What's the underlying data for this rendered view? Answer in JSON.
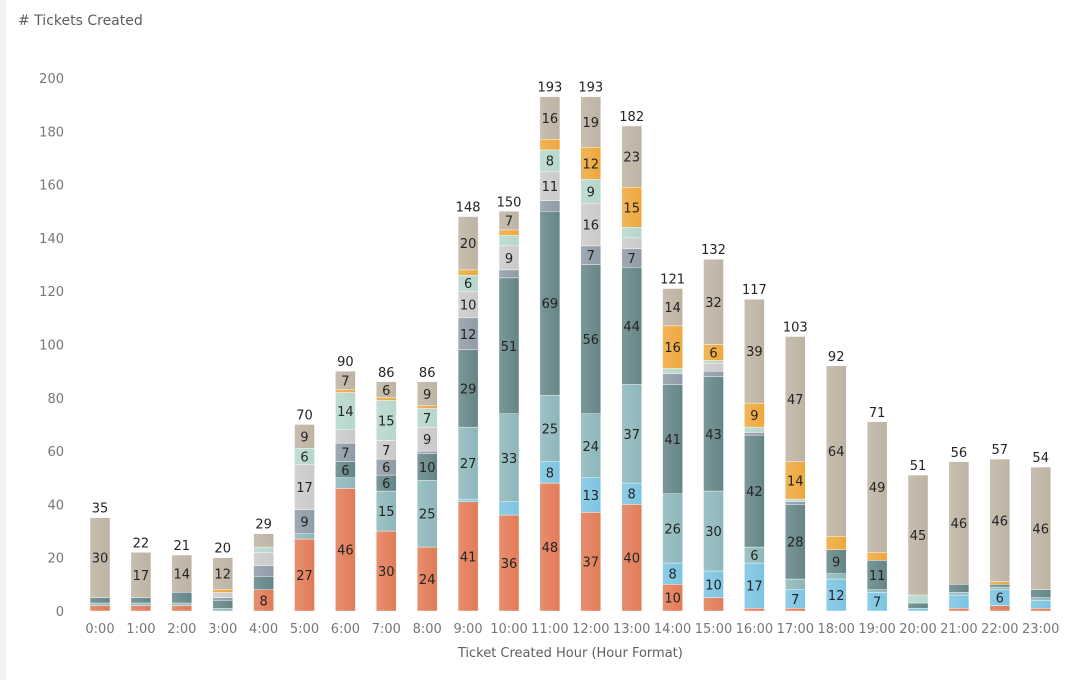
{
  "chart_data": {
    "type": "bar",
    "stacked": true,
    "title": "# Tickets Created",
    "xlabel": "Ticket Created Hour (Hour Format)",
    "ylabel": "",
    "ylim": [
      0,
      200
    ],
    "yticks": [
      0,
      20,
      40,
      60,
      80,
      100,
      120,
      140,
      160,
      180,
      200
    ],
    "grid": false,
    "legend": "none",
    "categories": [
      "0:00",
      "1:00",
      "2:00",
      "3:00",
      "4:00",
      "5:00",
      "6:00",
      "7:00",
      "8:00",
      "9:00",
      "10:00",
      "11:00",
      "12:00",
      "13:00",
      "14:00",
      "15:00",
      "16:00",
      "17:00",
      "18:00",
      "19:00",
      "20:00",
      "21:00",
      "22:00",
      "23:00"
    ],
    "totals": [
      35,
      22,
      21,
      20,
      29,
      70,
      90,
      86,
      86,
      148,
      150,
      193,
      193,
      182,
      121,
      132,
      117,
      103,
      92,
      71,
      51,
      56,
      57,
      54
    ],
    "label_min": 6,
    "series": [
      {
        "name": "Series 1",
        "color": "#E27B57",
        "values": [
          2,
          2,
          2,
          0,
          8,
          27,
          46,
          30,
          24,
          41,
          36,
          48,
          37,
          40,
          10,
          5,
          1,
          1,
          0,
          0,
          0,
          1,
          2,
          1
        ]
      },
      {
        "name": "Series 2",
        "color": "#7CC4E2",
        "values": [
          0,
          0,
          0,
          0,
          0,
          0,
          0,
          0,
          0,
          1,
          5,
          8,
          13,
          8,
          8,
          10,
          17,
          7,
          12,
          7,
          1,
          5,
          6,
          3
        ]
      },
      {
        "name": "Series 3",
        "color": "#8DB7BB",
        "values": [
          1,
          1,
          1,
          1,
          0,
          2,
          4,
          15,
          25,
          27,
          33,
          25,
          24,
          37,
          26,
          30,
          6,
          4,
          2,
          1,
          0,
          1,
          1,
          1
        ]
      },
      {
        "name": "Series 4",
        "color": "#648587",
        "values": [
          2,
          2,
          4,
          3,
          5,
          0,
          6,
          6,
          10,
          29,
          51,
          69,
          56,
          44,
          41,
          43,
          42,
          28,
          9,
          11,
          2,
          3,
          1,
          3
        ]
      },
      {
        "name": "Series 5",
        "color": "#8F9BA8",
        "values": [
          0,
          0,
          0,
          1,
          4,
          9,
          7,
          6,
          1,
          12,
          3,
          4,
          7,
          7,
          4,
          2,
          1,
          1,
          0,
          0,
          0,
          0,
          0,
          0
        ]
      },
      {
        "name": "Series 6",
        "color": "#CACACA",
        "values": [
          0,
          0,
          0,
          2,
          5,
          17,
          5,
          7,
          9,
          10,
          9,
          11,
          16,
          4,
          0,
          3,
          0,
          0,
          0,
          0,
          0,
          0,
          0,
          0
        ]
      },
      {
        "name": "Series 7",
        "color": "#B6D7CB",
        "values": [
          0,
          0,
          0,
          0,
          2,
          6,
          14,
          15,
          7,
          6,
          4,
          8,
          9,
          4,
          2,
          1,
          2,
          1,
          0,
          0,
          3,
          0,
          0,
          0
        ]
      },
      {
        "name": "Series 8",
        "color": "#EEA83C",
        "values": [
          0,
          0,
          0,
          1,
          0,
          0,
          1,
          1,
          1,
          2,
          2,
          4,
          12,
          15,
          16,
          6,
          9,
          14,
          5,
          3,
          0,
          0,
          1,
          0
        ]
      },
      {
        "name": "Series 9",
        "color": "#BEB3A3",
        "values": [
          30,
          17,
          14,
          12,
          5,
          9,
          7,
          6,
          9,
          20,
          7,
          16,
          19,
          23,
          14,
          32,
          39,
          47,
          64,
          49,
          45,
          46,
          46,
          46
        ]
      }
    ]
  }
}
